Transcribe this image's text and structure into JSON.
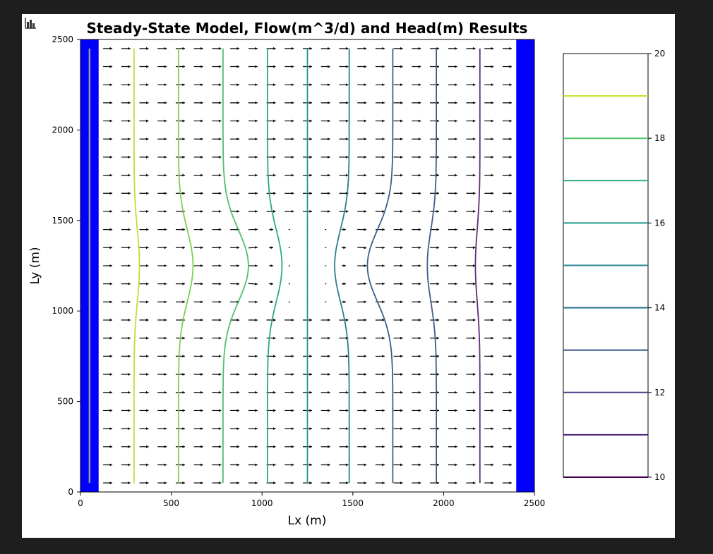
{
  "toolbar": {
    "icon": "bar-chart-icon"
  },
  "chart_data": {
    "type": "contour",
    "title": "Steady-State Model, Flow(m^3/d) and Head(m) Results",
    "xlabel": "Lx (m)",
    "ylabel": "Ly (m)",
    "xlim": [
      0,
      2500
    ],
    "ylim": [
      0,
      2500
    ],
    "xticks": [
      "0",
      "500",
      "1000",
      "1500",
      "2000",
      "2500"
    ],
    "yticks": [
      "0",
      "500",
      "1000",
      "1500",
      "2000",
      "2500"
    ],
    "boundary_color": "#0000ff",
    "boundaries": [
      {
        "name": "left-constant-head",
        "x": [
          0,
          100
        ]
      },
      {
        "name": "right-constant-head",
        "x": [
          2400,
          2500
        ]
      }
    ],
    "grid": {
      "cell_size": 100,
      "nx": 25,
      "ny": 25
    },
    "flow_arrows": {
      "x_start": 150,
      "x_end": 2350,
      "dx": 100,
      "y_start": 50,
      "y_end": 2450,
      "dy": 100
    },
    "contour_levels": [
      19,
      18,
      17,
      16,
      15,
      14,
      13,
      12,
      11
    ],
    "contours": [
      {
        "level": 19,
        "color": "#c0de36",
        "x_bottom": 295,
        "bulge": 30
      },
      {
        "level": 18,
        "color": "#7bd250",
        "x_bottom": 540,
        "bulge": 80
      },
      {
        "level": 17,
        "color": "#4fc06a",
        "x_bottom": 785,
        "bulge": 140
      },
      {
        "level": 16,
        "color": "#29aa83",
        "x_bottom": 1030,
        "bulge": 80
      },
      {
        "level": 15,
        "color": "#22998c",
        "x_bottom": 1250,
        "bulge": 0
      },
      {
        "level": 14,
        "color": "#2d7e8e",
        "x_bottom": 1480,
        "bulge": -80
      },
      {
        "level": 13,
        "color": "#3b5f8c",
        "x_bottom": 1720,
        "bulge": -140
      },
      {
        "level": 12,
        "color": "#465a8c",
        "x_bottom": 1960,
        "bulge": -50
      },
      {
        "level": 11,
        "color": "#5b2f79",
        "x_bottom": 2200,
        "bulge": -25
      }
    ],
    "grey_line_x": 50,
    "colorbar": {
      "min": 10,
      "max": 20,
      "ticks": [
        "10",
        "12",
        "14",
        "16",
        "18",
        "20"
      ],
      "levels": [
        {
          "value": 10,
          "color": "#440154"
        },
        {
          "value": 11,
          "color": "#482173"
        },
        {
          "value": 12,
          "color": "#433e85"
        },
        {
          "value": 13,
          "color": "#38598c"
        },
        {
          "value": 14,
          "color": "#2d708e"
        },
        {
          "value": 15,
          "color": "#25858e"
        },
        {
          "value": 16,
          "color": "#1e9b8a"
        },
        {
          "value": 17,
          "color": "#2ab07f"
        },
        {
          "value": 18,
          "color": "#52c569"
        },
        {
          "value": 19,
          "color": "#bddf26"
        }
      ]
    }
  }
}
